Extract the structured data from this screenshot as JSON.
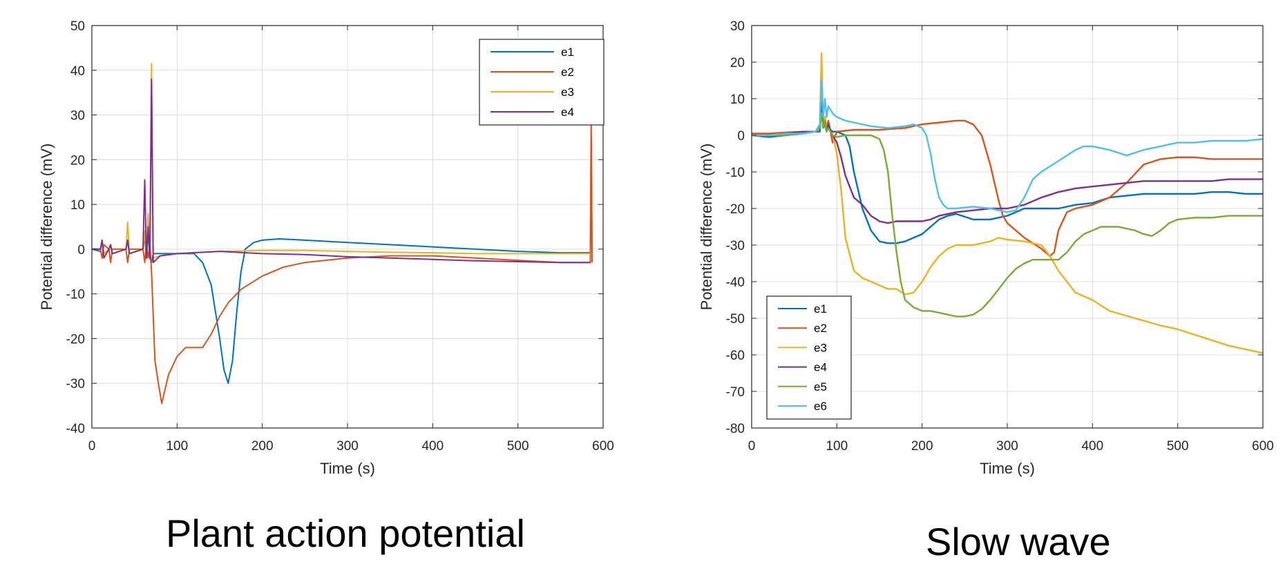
{
  "captions": [
    "Plant action potential",
    "Slow wave"
  ],
  "chart_data": [
    {
      "type": "line",
      "caption": "Plant action potential",
      "xlabel": "Time (s)",
      "ylabel": "Potential difference (mV)",
      "xlim": [
        0,
        600
      ],
      "ylim": [
        -40,
        50
      ],
      "xticks": [
        0,
        100,
        200,
        300,
        400,
        500,
        600
      ],
      "yticks": [
        -40,
        -30,
        -20,
        -10,
        0,
        10,
        20,
        30,
        40,
        50
      ],
      "grid": true,
      "legend_position": "top-right",
      "series": [
        {
          "name": "e1",
          "color": "#0072BD",
          "x": [
            0,
            10,
            12,
            14,
            20,
            22,
            24,
            40,
            42,
            44,
            60,
            62,
            64,
            66,
            68,
            70,
            72,
            80,
            100,
            120,
            130,
            140,
            150,
            155,
            160,
            165,
            170,
            175,
            180,
            190,
            200,
            220,
            250,
            300,
            350,
            400,
            450,
            500,
            550,
            585,
            586,
            587
          ],
          "y": [
            0,
            -0.5,
            2,
            -1,
            0,
            1,
            -1,
            0,
            2,
            -1,
            0,
            3,
            -2,
            4,
            -2,
            -3,
            -1,
            -1,
            -1,
            -1,
            -3,
            -8,
            -20,
            -27,
            -30,
            -25,
            -14,
            -5,
            0,
            1.5,
            2,
            2.3,
            2,
            1.5,
            1,
            0.5,
            0,
            -0.5,
            -0.8,
            -0.8,
            25,
            -0.8
          ]
        },
        {
          "name": "e2",
          "color": "#D95319",
          "x": [
            0,
            10,
            12,
            14,
            20,
            22,
            24,
            40,
            42,
            44,
            60,
            62,
            64,
            66,
            68,
            70,
            72,
            74,
            78,
            82,
            90,
            100,
            110,
            120,
            130,
            140,
            150,
            160,
            175,
            200,
            225,
            250,
            300,
            350,
            400,
            450,
            500,
            550,
            585,
            586,
            587
          ],
          "y": [
            0,
            0,
            -2,
            1,
            0,
            -3,
            0,
            0,
            -3,
            0,
            0,
            -3,
            1,
            -2,
            1,
            -5,
            -15,
            -25,
            -30,
            -34.5,
            -28,
            -24,
            -22,
            -22,
            -22,
            -19,
            -15,
            -12,
            -9,
            -6,
            -4,
            -3,
            -2,
            -1.5,
            -1.5,
            -2,
            -2.5,
            -3,
            -3,
            29,
            -3
          ]
        },
        {
          "name": "e3",
          "color": "#EDB120",
          "x": [
            0,
            10,
            12,
            14,
            20,
            22,
            24,
            40,
            42,
            44,
            60,
            62,
            64,
            66,
            68,
            70,
            72,
            80,
            100,
            150,
            200,
            250,
            300,
            350,
            400,
            450,
            500,
            550,
            585
          ],
          "y": [
            0,
            0,
            2,
            -1,
            0,
            1,
            -1,
            0,
            6,
            -1,
            0,
            4,
            -1,
            8,
            -1,
            41.5,
            -2,
            -1.5,
            -1,
            -0.5,
            -0.3,
            -0.3,
            -0.5,
            -0.7,
            -0.8,
            -1,
            -1,
            -1,
            -1
          ]
        },
        {
          "name": "e4",
          "color": "#7E2F8E",
          "x": [
            0,
            10,
            12,
            14,
            20,
            22,
            24,
            40,
            42,
            44,
            60,
            62,
            64,
            66,
            68,
            70,
            72,
            80,
            100,
            150,
            200,
            250,
            300,
            350,
            400,
            450,
            500,
            550,
            585
          ],
          "y": [
            0,
            0,
            2,
            -2,
            0,
            1,
            -1,
            0,
            2,
            -1,
            0,
            15.5,
            -2,
            5,
            -2,
            38,
            -3,
            -1.5,
            -1,
            -0.5,
            -1,
            -1.2,
            -1.7,
            -2,
            -2.3,
            -2.6,
            -2.8,
            -3,
            -3
          ]
        }
      ]
    },
    {
      "type": "line",
      "caption": "Slow wave",
      "xlabel": "Time (s)",
      "ylabel": "Potential difference (mV)",
      "xlim": [
        0,
        600
      ],
      "ylim": [
        -80,
        30
      ],
      "xticks": [
        0,
        100,
        200,
        300,
        400,
        500,
        600
      ],
      "yticks": [
        -80,
        -70,
        -60,
        -50,
        -40,
        -30,
        -20,
        -10,
        0,
        10,
        20,
        30
      ],
      "grid": true,
      "legend_position": "bottom-left",
      "series": [
        {
          "name": "e1",
          "color": "#0072BD",
          "x": [
            0,
            20,
            40,
            60,
            75,
            80,
            82,
            84,
            86,
            88,
            90,
            95,
            100,
            110,
            115,
            120,
            130,
            140,
            150,
            160,
            170,
            180,
            190,
            200,
            210,
            220,
            230,
            240,
            260,
            280,
            300,
            320,
            340,
            360,
            380,
            400,
            420,
            440,
            460,
            480,
            500,
            520,
            540,
            560,
            580,
            600
          ],
          "y": [
            0,
            -0.5,
            0,
            0.5,
            1,
            1,
            8,
            2,
            3,
            1,
            2,
            1,
            1,
            0,
            -3,
            -10,
            -20,
            -26,
            -29,
            -29.5,
            -29.5,
            -29,
            -28,
            -27,
            -25,
            -23,
            -22,
            -21.5,
            -23,
            -23,
            -22,
            -20,
            -20,
            -20,
            -19,
            -18.5,
            -17,
            -16.5,
            -16,
            -16,
            -16,
            -16,
            -15.5,
            -15.5,
            -16,
            -16
          ]
        },
        {
          "name": "e2",
          "color": "#D95319",
          "x": [
            0,
            20,
            40,
            60,
            75,
            80,
            82,
            84,
            86,
            88,
            90,
            95,
            100,
            120,
            150,
            180,
            200,
            220,
            240,
            250,
            260,
            270,
            280,
            290,
            295,
            300,
            320,
            340,
            350,
            355,
            360,
            370,
            380,
            400,
            420,
            440,
            460,
            480,
            500,
            520,
            540,
            560,
            580,
            600
          ],
          "y": [
            0.5,
            0.5,
            0.8,
            1,
            1,
            2,
            10,
            3,
            5,
            2,
            4,
            -2,
            1,
            1.5,
            1.5,
            2,
            3,
            3.5,
            4,
            4,
            3,
            0,
            -8,
            -18,
            -22,
            -24,
            -28,
            -31,
            -33,
            -32,
            -26,
            -21,
            -20,
            -19,
            -17,
            -13,
            -8,
            -6.5,
            -6,
            -6,
            -6.5,
            -6.5,
            -6.5,
            -6.5
          ]
        },
        {
          "name": "e3",
          "color": "#EDB120",
          "x": [
            0,
            20,
            40,
            60,
            75,
            80,
            82,
            84,
            86,
            88,
            90,
            95,
            100,
            105,
            110,
            120,
            130,
            140,
            150,
            160,
            170,
            180,
            190,
            200,
            210,
            220,
            230,
            240,
            260,
            280,
            290,
            300,
            320,
            340,
            350,
            360,
            380,
            400,
            420,
            450,
            480,
            500,
            520,
            540,
            560,
            580,
            600
          ],
          "y": [
            0,
            0,
            0.5,
            1,
            1,
            3,
            22.5,
            2,
            5,
            2,
            3,
            0,
            -5,
            -15,
            -28,
            -37,
            -39,
            -40,
            -41,
            -42,
            -42,
            -43.5,
            -43,
            -40,
            -36,
            -33,
            -31,
            -30,
            -30,
            -29,
            -28,
            -28.5,
            -29,
            -30,
            -33,
            -37,
            -43,
            -45,
            -48,
            -50,
            -52,
            -53,
            -54.5,
            -56,
            -57.5,
            -58.5,
            -59.5
          ]
        },
        {
          "name": "e4",
          "color": "#7E2F8E",
          "x": [
            0,
            20,
            40,
            60,
            75,
            80,
            82,
            84,
            86,
            88,
            90,
            95,
            100,
            105,
            110,
            115,
            120,
            130,
            140,
            150,
            160,
            170,
            180,
            200,
            210,
            220,
            240,
            260,
            280,
            300,
            320,
            340,
            360,
            380,
            400,
            420,
            440,
            460,
            480,
            500,
            520,
            540,
            560,
            580,
            600
          ],
          "y": [
            0,
            0,
            0.5,
            1,
            1,
            2,
            9,
            2,
            4,
            1,
            3,
            0,
            -2,
            -6,
            -11,
            -14,
            -17,
            -19,
            -22,
            -23.5,
            -24,
            -23.5,
            -23.5,
            -23.5,
            -23,
            -22,
            -21,
            -20.5,
            -20,
            -20,
            -19,
            -17,
            -15.5,
            -14.5,
            -14,
            -13.5,
            -13,
            -12.5,
            -12.5,
            -12.5,
            -12.5,
            -12.5,
            -12,
            -12,
            -12
          ]
        },
        {
          "name": "e5",
          "color": "#77AC30",
          "x": [
            0,
            20,
            40,
            60,
            75,
            80,
            82,
            84,
            86,
            88,
            90,
            95,
            100,
            110,
            120,
            130,
            140,
            150,
            155,
            160,
            165,
            170,
            175,
            180,
            190,
            200,
            210,
            220,
            230,
            240,
            250,
            260,
            270,
            280,
            290,
            300,
            310,
            320,
            330,
            340,
            350,
            360,
            370,
            380,
            390,
            400,
            410,
            420,
            430,
            440,
            450,
            460,
            470,
            480,
            490,
            500,
            520,
            540,
            560,
            580,
            600
          ],
          "y": [
            0,
            0,
            0,
            0.5,
            1,
            2,
            6,
            2,
            4,
            1,
            2,
            0,
            -0.5,
            0,
            0,
            0,
            0,
            -1,
            -4,
            -10,
            -22,
            -32,
            -40,
            -45,
            -47,
            -48,
            -48,
            -48.5,
            -49,
            -49.5,
            -49.5,
            -49,
            -47.5,
            -45,
            -42,
            -39,
            -36.5,
            -35,
            -34,
            -34,
            -34,
            -34,
            -32,
            -29,
            -27,
            -26,
            -25,
            -25,
            -25,
            -25.5,
            -26,
            -27,
            -27.5,
            -26,
            -24,
            -23,
            -22.5,
            -22.5,
            -22,
            -22,
            -22
          ]
        },
        {
          "name": "e6",
          "color": "#4DBEEE",
          "x": [
            0,
            20,
            40,
            60,
            75,
            80,
            82,
            84,
            86,
            88,
            90,
            95,
            100,
            110,
            120,
            140,
            160,
            180,
            190,
            200,
            205,
            210,
            215,
            220,
            225,
            230,
            240,
            260,
            280,
            300,
            310,
            320,
            330,
            340,
            360,
            380,
            390,
            400,
            410,
            420,
            440,
            460,
            480,
            500,
            520,
            540,
            560,
            580,
            600
          ],
          "y": [
            0,
            0,
            0.5,
            0.5,
            1,
            3,
            15,
            5,
            10,
            5,
            8,
            6,
            5,
            4,
            3.5,
            2.5,
            2,
            2.5,
            3,
            2,
            0,
            -5,
            -12,
            -17,
            -19,
            -20,
            -20,
            -19.5,
            -20,
            -21,
            -20.5,
            -17,
            -12,
            -10,
            -7,
            -4,
            -3,
            -3,
            -3.5,
            -4,
            -5.5,
            -4,
            -3,
            -2,
            -2,
            -1.5,
            -1.5,
            -1.5,
            -1
          ]
        }
      ]
    }
  ]
}
